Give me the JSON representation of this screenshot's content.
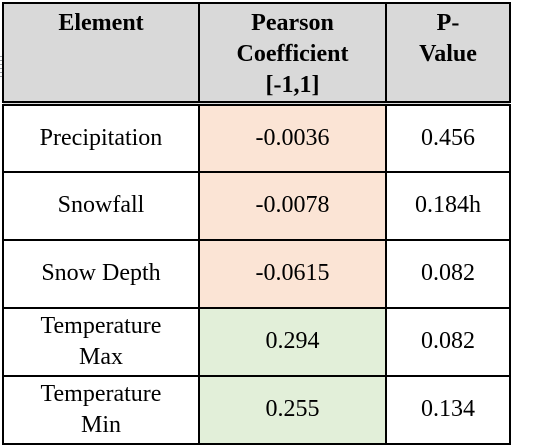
{
  "table": {
    "headers": {
      "element": "Element",
      "pearson_line1": "Pearson",
      "pearson_line2": "Coefficient",
      "pearson_line3": "[-1,1]",
      "pvalue_line1": "P-",
      "pvalue_line2": "Value"
    },
    "rows": [
      {
        "element": "Precipitation",
        "element_line2": "",
        "pearson": "-0.0036",
        "pvalue": "0.456",
        "shade": "negative"
      },
      {
        "element": "Snowfall",
        "element_line2": "",
        "pearson": "-0.0078",
        "pvalue": "0.184h",
        "shade": "negative"
      },
      {
        "element": "Snow Depth",
        "element_line2": "",
        "pearson": "-0.0615",
        "pvalue": "0.082",
        "shade": "negative"
      },
      {
        "element": "Temperature",
        "element_line2": "Max",
        "pearson": "0.294",
        "pvalue": "0.082",
        "shade": "positive"
      },
      {
        "element": "Temperature",
        "element_line2": "Min",
        "pearson": "0.255",
        "pvalue": "0.134",
        "shade": "positive"
      }
    ],
    "colors": {
      "header_background": "#d9d9d9",
      "negative_background": "#fbe4d5",
      "positive_background": "#e2efd9",
      "border": "#000000"
    }
  }
}
